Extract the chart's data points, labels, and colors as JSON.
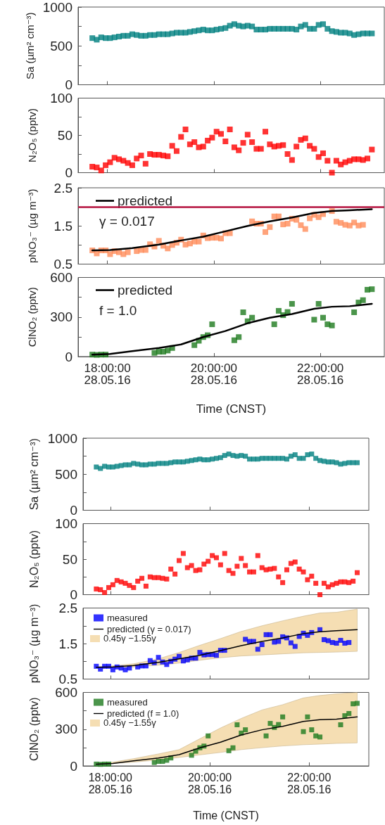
{
  "chart_data": [
    {
      "type": "scatter",
      "ylabel": "Sa (µm² cm⁻³)",
      "marker": "square",
      "tick_labels": "y",
      "xlim": [
        "--05-28T17:27",
        "--05-28T23:12"
      ],
      "xticks": [
        {
          "value": "--05-28T18:00",
          "label": null
        },
        {
          "value": "--05-28T20:00",
          "label": null
        },
        {
          "value": "--05-28T22:00",
          "label": null
        }
      ],
      "ylim": [
        0,
        1000
      ],
      "yticks": [
        0,
        {
          "value": 250,
          "label": null
        },
        500,
        {
          "value": 750,
          "label": null
        },
        1000
      ],
      "x": [
        "--05-28T17:43",
        "--05-28T17:48",
        "--05-28T17:53",
        "--05-28T17:58",
        "--05-28T18:03",
        "--05-28T18:08",
        "--05-28T18:13",
        "--05-28T18:18",
        "--05-28T18:23",
        "--05-28T18:28",
        "--05-28T18:33",
        "--05-28T18:38",
        "--05-28T18:43",
        "--05-28T18:48",
        "--05-28T18:53",
        "--05-28T18:58",
        "--05-28T19:03",
        "--05-28T19:08",
        "--05-28T19:13",
        "--05-28T19:18",
        "--05-28T19:23",
        "--05-28T19:28",
        "--05-28T19:33",
        "--05-28T19:38",
        "--05-28T19:43",
        "--05-28T19:48",
        "--05-28T19:53",
        "--05-28T19:58",
        "--05-28T20:03",
        "--05-28T20:08",
        "--05-28T20:13",
        "--05-28T20:18",
        "--05-28T20:23",
        "--05-28T20:28",
        "--05-28T20:33",
        "--05-28T20:38",
        "--05-28T20:43",
        "--05-28T20:48",
        "--05-28T20:53",
        "--05-28T20:58",
        "--05-28T21:03",
        "--05-28T21:08",
        "--05-28T21:13",
        "--05-28T21:18",
        "--05-28T21:23",
        "--05-28T21:28",
        "--05-28T21:33",
        "--05-28T21:38",
        "--05-28T21:43",
        "--05-28T21:48",
        "--05-28T21:53",
        "--05-28T21:58",
        "--05-28T22:03",
        "--05-28T22:08",
        "--05-28T22:13",
        "--05-28T22:18",
        "--05-28T22:23",
        "--05-28T22:28",
        "--05-28T22:33",
        "--05-28T22:38",
        "--05-28T22:43",
        "--05-28T22:48",
        "--05-28T22:53",
        "--05-28T22:58"
      ],
      "series": [
        {
          "color": "#008080",
          "values": [
            600,
            580,
            610,
            600,
            600,
            610,
            620,
            630,
            630,
            650,
            640,
            630,
            630,
            640,
            640,
            650,
            650,
            650,
            660,
            670,
            670,
            670,
            680,
            690,
            700,
            710,
            700,
            700,
            710,
            720,
            730,
            760,
            780,
            760,
            750,
            760,
            750,
            710,
            710,
            710,
            720,
            720,
            720,
            720,
            720,
            720,
            710,
            750,
            770,
            720,
            720,
            770,
            780,
            720,
            690,
            680,
            670,
            670,
            660,
            640,
            650,
            660,
            660,
            660
          ]
        }
      ]
    },
    {
      "type": "scatter",
      "ylabel": "N₂O₅ (pptv)",
      "marker": "square",
      "tick_labels": "y",
      "xlim": [
        "--05-28T17:27",
        "--05-28T23:12"
      ],
      "xticks": [
        {
          "value": "--05-28T18:00",
          "label": null
        },
        {
          "value": "--05-28T20:00",
          "label": null
        },
        {
          "value": "--05-28T22:00",
          "label": null
        }
      ],
      "ylim": [
        0,
        100
      ],
      "yticks": [
        0,
        {
          "value": 25,
          "label": null
        },
        50,
        {
          "value": 75,
          "label": null
        },
        100
      ],
      "x": [
        "--05-28T17:43",
        "--05-28T17:48",
        "--05-28T17:53",
        "--05-28T17:58",
        "--05-28T18:03",
        "--05-28T18:08",
        "--05-28T18:13",
        "--05-28T18:18",
        "--05-28T18:23",
        "--05-28T18:28",
        "--05-28T18:33",
        "--05-28T18:38",
        "--05-28T18:43",
        "--05-28T18:48",
        "--05-28T18:53",
        "--05-28T18:58",
        "--05-28T19:03",
        "--05-28T19:08",
        "--05-28T19:13",
        "--05-28T19:18",
        "--05-28T19:23",
        "--05-28T19:28",
        "--05-28T19:33",
        "--05-28T19:38",
        "--05-28T19:43",
        "--05-28T19:48",
        "--05-28T19:53",
        "--05-28T19:58",
        "--05-28T20:03",
        "--05-28T20:08",
        "--05-28T20:13",
        "--05-28T20:18",
        "--05-28T20:23",
        "--05-28T20:28",
        "--05-28T20:33",
        "--05-28T20:38",
        "--05-28T20:43",
        "--05-28T20:48",
        "--05-28T20:53",
        "--05-28T20:58",
        "--05-28T21:03",
        "--05-28T21:08",
        "--05-28T21:13",
        "--05-28T21:18",
        "--05-28T21:23",
        "--05-28T21:28",
        "--05-28T21:33",
        "--05-28T21:38",
        "--05-28T21:43",
        "--05-28T21:48",
        "--05-28T21:53",
        "--05-28T21:58",
        "--05-28T22:03",
        "--05-28T22:08",
        "--05-28T22:13",
        "--05-28T22:18",
        "--05-28T22:23",
        "--05-28T22:28",
        "--05-28T22:33",
        "--05-28T22:38",
        "--05-28T22:43",
        "--05-28T22:48",
        "--05-28T22:53",
        "--05-28T22:58"
      ],
      "series": [
        {
          "color": "#ff0000",
          "values": [
            8,
            7,
            3,
            10,
            14,
            20,
            18,
            16,
            13,
            10,
            19,
            23,
            12,
            25,
            24,
            24,
            23,
            22,
            36,
            29,
            48,
            58,
            38,
            41,
            34,
            35,
            43,
            47,
            55,
            52,
            42,
            58,
            34,
            30,
            40,
            51,
            41,
            32,
            32,
            55,
            38,
            35,
            36,
            37,
            25,
            17,
            35,
            44,
            46,
            36,
            32,
            21,
            26,
            16,
            0,
            16,
            11,
            14,
            16,
            18,
            18,
            17,
            19,
            31
          ]
        }
      ]
    },
    {
      "type": "scatter",
      "ylabel": "pNO₃⁻ (µg m⁻³)",
      "marker": "square",
      "legend": "top left",
      "annotations": [
        "γ = 0.017"
      ],
      "tick_labels": "y",
      "xlim": [
        "--05-28T17:27",
        "--05-28T23:12"
      ],
      "xticks": [
        {
          "value": "--05-28T18:00",
          "label": null
        },
        {
          "value": "--05-28T20:00",
          "label": null
        },
        {
          "value": "--05-28T22:00",
          "label": null
        }
      ],
      "ylim": [
        0.5,
        2.5
      ],
      "yticks": [
        0.5,
        {
          "value": 1.0,
          "label": null
        },
        1.5,
        {
          "value": 2.0,
          "label": null
        },
        2.5
      ],
      "ref_lines": [
        {
          "axis": "y",
          "value": 2.0,
          "color": "#b5123e"
        }
      ],
      "x": [
        "--05-28T17:43",
        "--05-28T17:48",
        "--05-28T17:53",
        "--05-28T17:58",
        "--05-28T18:03",
        "--05-28T18:08",
        "--05-28T18:13",
        "--05-28T18:18",
        "--05-28T18:23",
        "--05-28T18:28",
        "--05-28T18:33",
        "--05-28T18:38",
        "--05-28T18:43",
        "--05-28T18:48",
        "--05-28T18:53",
        "--05-28T18:58",
        "--05-28T19:03",
        "--05-28T19:08",
        "--05-28T19:13",
        "--05-28T19:18",
        "--05-28T19:23",
        "--05-28T19:28",
        "--05-28T19:33",
        "--05-28T19:38",
        "--05-28T19:43",
        "--05-28T19:48",
        "--05-28T19:53",
        "--05-28T19:58",
        "--05-28T20:03",
        "--05-28T20:08",
        "--05-28T20:13",
        "--05-28T20:18",
        "--05-28T20:23",
        "--05-28T20:28",
        "--05-28T20:33",
        "--05-28T20:38",
        "--05-28T20:43",
        "--05-28T20:48",
        "--05-28T20:53",
        "--05-28T20:58",
        "--05-28T21:03",
        "--05-28T21:08",
        "--05-28T21:13",
        "--05-28T21:18",
        "--05-28T21:23",
        "--05-28T21:28",
        "--05-28T21:33",
        "--05-28T21:38",
        "--05-28T21:43",
        "--05-28T21:48",
        "--05-28T21:53",
        "--05-28T21:58",
        "--05-28T22:03",
        "--05-28T22:08",
        "--05-28T22:13",
        "--05-28T22:18",
        "--05-28T22:23",
        "--05-28T22:28",
        "--05-28T22:33",
        "--05-28T22:38",
        "--05-28T22:43",
        "--05-28T22:48"
      ],
      "series": [
        {
          "color": "#ff8c5a",
          "values": [
            0.86,
            0.78,
            0.86,
            0.86,
            0.76,
            0.84,
            0.81,
            0.76,
            0.81,
            null,
            0.84,
            0.87,
            0.87,
            1.02,
            0.96,
            1.11,
            0.98,
            0.91,
            1.0,
            1.06,
            1.14,
            1.01,
            1.04,
            1.09,
            1.09,
            1.25,
            1.18,
            1.19,
            1.19,
            1.17,
            1.31,
            1.31,
            null,
            null,
            null,
            null,
            1.62,
            1.56,
            1.56,
            1.34,
            1.47,
            1.75,
            1.75,
            1.54,
            1.56,
            1.69,
            1.66,
            1.52,
            1.42,
            1.7,
            1.79,
            1.73,
            1.81,
            null,
            1.89,
            1.61,
            1.58,
            1.53,
            1.51,
            1.59,
            1.51,
            1.53
          ]
        },
        {
          "type": "line",
          "name": "predicted",
          "color": "#000000",
          "marker": "none",
          "x": [
            "--05-28T17:43",
            "--05-28T18:03",
            "--05-28T18:28",
            "--05-28T18:58",
            "--05-28T19:23",
            "--05-28T19:48",
            "--05-28T20:13",
            "--05-28T20:38",
            "--05-28T21:03",
            "--05-28T21:28",
            "--05-28T21:53",
            "--05-28T22:13",
            "--05-28T22:33",
            "--05-28T22:58"
          ],
          "values": [
            0.86,
            0.87,
            0.92,
            1.01,
            1.12,
            1.22,
            1.36,
            1.5,
            1.62,
            1.72,
            1.84,
            1.89,
            1.91,
            1.94
          ]
        }
      ]
    },
    {
      "type": "scatter",
      "ylabel": "ClNO₂ (pptv)",
      "xlabel": "Time (CNST)",
      "marker": "square",
      "legend": "top left",
      "annotations": [
        "f = 1.0"
      ],
      "xlim": [
        "--05-28T17:27",
        "--05-28T23:12"
      ],
      "xticks": [
        {
          "value": "--05-28T18:00",
          "label": "18:00:00\n28.05.16"
        },
        {
          "value": "--05-28T20:00",
          "label": "20:00:00\n28.05.16"
        },
        {
          "value": "--05-28T22:00",
          "label": "22:00:00\n28.05.16"
        }
      ],
      "ylim": [
        0,
        600
      ],
      "yticks": [
        0,
        {
          "value": 150,
          "label": null
        },
        300,
        {
          "value": 450,
          "label": null
        },
        600
      ],
      "x": [
        "--05-28T17:43",
        "--05-28T17:48",
        "--05-28T17:53",
        "--05-28T17:58",
        "--05-28T18:03",
        "--05-28T18:08",
        "--05-28T18:13",
        "--05-28T18:18",
        "--05-28T18:23",
        "--05-28T18:28",
        "--05-28T18:33",
        "--05-28T18:38",
        "--05-28T18:43",
        "--05-28T18:48",
        "--05-28T18:53",
        "--05-28T18:58",
        "--05-28T19:03",
        "--05-28T19:08",
        "--05-28T19:13",
        "--05-28T19:18",
        "--05-28T19:23",
        "--05-28T19:28",
        "--05-28T19:33",
        "--05-28T19:38",
        "--05-28T19:43",
        "--05-28T19:48",
        "--05-28T19:53",
        "--05-28T19:58",
        "--05-28T20:03",
        "--05-28T20:08",
        "--05-28T20:13",
        "--05-28T20:18",
        "--05-28T20:23",
        "--05-28T20:28",
        "--05-28T20:33",
        "--05-28T20:38",
        "--05-28T20:43",
        "--05-28T20:48",
        "--05-28T20:53",
        "--05-28T20:58",
        "--05-28T21:03",
        "--05-28T21:08",
        "--05-28T21:13",
        "--05-28T21:18",
        "--05-28T21:23",
        "--05-28T21:28",
        "--05-28T21:33",
        "--05-28T21:38",
        "--05-28T21:43",
        "--05-28T21:48",
        "--05-28T21:53",
        "--05-28T21:58",
        "--05-28T22:03",
        "--05-28T22:08",
        "--05-28T22:13",
        "--05-28T22:18",
        "--05-28T22:23",
        "--05-28T22:28",
        "--05-28T22:33",
        "--05-28T22:38",
        "--05-28T22:43",
        "--05-28T22:48",
        "--05-28T22:53",
        "--05-28T22:58"
      ],
      "series": [
        {
          "color": "#1e7a1e",
          "values": [
            15,
            13,
            15,
            15,
            null,
            null,
            null,
            null,
            null,
            null,
            null,
            null,
            null,
            null,
            28,
            37,
            37,
            46,
            65,
            null,
            null,
            null,
            null,
            87,
            120,
            148,
            162,
            245,
            null,
            null,
            null,
            null,
            124,
            148,
            336,
            268,
            295,
            null,
            null,
            null,
            null,
            245,
            347,
            314,
            338,
            400,
            null,
            null,
            null,
            null,
            280,
            400,
            295,
            245,
            236,
            null,
            null,
            null,
            null,
            336,
            410,
            428,
            507,
            511
          ]
        },
        {
          "type": "line",
          "name": "predicted",
          "color": "#000000",
          "marker": "none",
          "x": [
            "--05-28T17:43",
            "--05-28T18:03",
            "--05-28T18:28",
            "--05-28T18:58",
            "--05-28T19:23",
            "--05-28T19:48",
            "--05-28T20:13",
            "--05-28T20:38",
            "--05-28T21:03",
            "--05-28T21:28",
            "--05-28T21:53",
            "--05-28T22:13",
            "--05-28T22:33",
            "--05-28T22:58"
          ],
          "values": [
            15,
            20,
            41,
            65,
            92,
            148,
            194,
            253,
            295,
            323,
            363,
            378,
            382,
            400
          ]
        }
      ]
    },
    {
      "type": "scatter",
      "ylabel": "Sa (µm² cm⁻³)",
      "marker": "square",
      "tick_labels": "y",
      "xlim": [
        "--05-28T17:27",
        "--05-28T23:12"
      ],
      "xticks": [
        {
          "value": "--05-28T18:00",
          "label": null
        },
        {
          "value": "--05-28T20:00",
          "label": null
        },
        {
          "value": "--05-28T22:00",
          "label": null
        }
      ],
      "ylim": [
        0,
        1000
      ],
      "yticks": [
        0,
        {
          "value": 250,
          "label": null
        },
        500,
        {
          "value": 750,
          "label": null
        },
        1000
      ],
      "x": [
        "--05-28T17:43",
        "--05-28T17:48",
        "--05-28T17:53",
        "--05-28T17:58",
        "--05-28T18:03",
        "--05-28T18:08",
        "--05-28T18:13",
        "--05-28T18:18",
        "--05-28T18:23",
        "--05-28T18:28",
        "--05-28T18:33",
        "--05-28T18:38",
        "--05-28T18:43",
        "--05-28T18:48",
        "--05-28T18:53",
        "--05-28T18:58",
        "--05-28T19:03",
        "--05-28T19:08",
        "--05-28T19:13",
        "--05-28T19:18",
        "--05-28T19:23",
        "--05-28T19:28",
        "--05-28T19:33",
        "--05-28T19:38",
        "--05-28T19:43",
        "--05-28T19:48",
        "--05-28T19:53",
        "--05-28T19:58",
        "--05-28T20:03",
        "--05-28T20:08",
        "--05-28T20:13",
        "--05-28T20:18",
        "--05-28T20:23",
        "--05-28T20:28",
        "--05-28T20:33",
        "--05-28T20:38",
        "--05-28T20:43",
        "--05-28T20:48",
        "--05-28T20:53",
        "--05-28T20:58",
        "--05-28T21:03",
        "--05-28T21:08",
        "--05-28T21:13",
        "--05-28T21:18",
        "--05-28T21:23",
        "--05-28T21:28",
        "--05-28T21:33",
        "--05-28T21:38",
        "--05-28T21:43",
        "--05-28T21:48",
        "--05-28T21:53",
        "--05-28T21:58",
        "--05-28T22:03",
        "--05-28T22:08",
        "--05-28T22:13",
        "--05-28T22:18",
        "--05-28T22:23",
        "--05-28T22:28",
        "--05-28T22:33",
        "--05-28T22:38",
        "--05-28T22:43",
        "--05-28T22:48",
        "--05-28T22:53",
        "--05-28T22:58"
      ],
      "series": [
        {
          "color": "#008080",
          "values": [
            600,
            580,
            610,
            600,
            600,
            610,
            620,
            630,
            630,
            650,
            640,
            630,
            630,
            640,
            640,
            650,
            650,
            650,
            660,
            670,
            670,
            670,
            680,
            690,
            700,
            710,
            700,
            700,
            710,
            720,
            730,
            760,
            780,
            760,
            750,
            760,
            750,
            710,
            710,
            710,
            720,
            720,
            720,
            720,
            720,
            720,
            710,
            750,
            770,
            720,
            720,
            770,
            780,
            720,
            690,
            680,
            670,
            670,
            660,
            640,
            650,
            660,
            660,
            660
          ]
        }
      ]
    },
    {
      "type": "scatter",
      "ylabel": "N₂O₅ (pptv)",
      "marker": "square",
      "tick_labels": "y",
      "xlim": [
        "--05-28T17:27",
        "--05-28T23:12"
      ],
      "xticks": [
        {
          "value": "--05-28T18:00",
          "label": null
        },
        {
          "value": "--05-28T20:00",
          "label": null
        },
        {
          "value": "--05-28T22:00",
          "label": null
        }
      ],
      "ylim": [
        0,
        100
      ],
      "yticks": [
        0,
        {
          "value": 25,
          "label": null
        },
        50,
        {
          "value": 75,
          "label": null
        },
        100
      ],
      "x": [
        "--05-28T17:43",
        "--05-28T17:48",
        "--05-28T17:53",
        "--05-28T17:58",
        "--05-28T18:03",
        "--05-28T18:08",
        "--05-28T18:13",
        "--05-28T18:18",
        "--05-28T18:23",
        "--05-28T18:28",
        "--05-28T18:33",
        "--05-28T18:38",
        "--05-28T18:43",
        "--05-28T18:48",
        "--05-28T18:53",
        "--05-28T18:58",
        "--05-28T19:03",
        "--05-28T19:08",
        "--05-28T19:13",
        "--05-28T19:18",
        "--05-28T19:23",
        "--05-28T19:28",
        "--05-28T19:33",
        "--05-28T19:38",
        "--05-28T19:43",
        "--05-28T19:48",
        "--05-28T19:53",
        "--05-28T19:58",
        "--05-28T20:03",
        "--05-28T20:08",
        "--05-28T20:13",
        "--05-28T20:18",
        "--05-28T20:23",
        "--05-28T20:28",
        "--05-28T20:33",
        "--05-28T20:38",
        "--05-28T20:43",
        "--05-28T20:48",
        "--05-28T20:53",
        "--05-28T20:58",
        "--05-28T21:03",
        "--05-28T21:08",
        "--05-28T21:13",
        "--05-28T21:18",
        "--05-28T21:23",
        "--05-28T21:28",
        "--05-28T21:33",
        "--05-28T21:38",
        "--05-28T21:43",
        "--05-28T21:48",
        "--05-28T21:53",
        "--05-28T21:58",
        "--05-28T22:03",
        "--05-28T22:08",
        "--05-28T22:13",
        "--05-28T22:18",
        "--05-28T22:23",
        "--05-28T22:28",
        "--05-28T22:33",
        "--05-28T22:38",
        "--05-28T22:43",
        "--05-28T22:48",
        "--05-28T22:53",
        "--05-28T22:58"
      ],
      "series": [
        {
          "color": "#ff0000",
          "values": [
            8,
            7,
            3,
            10,
            14,
            20,
            18,
            16,
            13,
            10,
            19,
            23,
            12,
            25,
            24,
            24,
            23,
            22,
            36,
            29,
            48,
            58,
            38,
            41,
            34,
            35,
            43,
            47,
            55,
            52,
            42,
            58,
            34,
            30,
            40,
            51,
            41,
            32,
            32,
            55,
            38,
            35,
            36,
            37,
            25,
            17,
            35,
            44,
            46,
            36,
            32,
            21,
            26,
            16,
            0,
            16,
            11,
            14,
            16,
            18,
            18,
            17,
            19,
            31
          ]
        }
      ]
    },
    {
      "type": "scatter",
      "ylabel": "pNO₃⁻ (µg m⁻³)",
      "marker": "square",
      "legend": "top left",
      "annotations": [
        "0.45γ −1.55γ"
      ],
      "tick_labels": "y",
      "xlim": [
        "--05-28T17:27",
        "--05-28T23:12"
      ],
      "xticks": [
        {
          "value": "--05-28T18:00",
          "label": null
        },
        {
          "value": "--05-28T20:00",
          "label": null
        },
        {
          "value": "--05-28T22:00",
          "label": null
        }
      ],
      "ylim": [
        0.5,
        2.5
      ],
      "yticks": [
        0.5,
        {
          "value": 1.0,
          "label": null
        },
        1.5,
        {
          "value": 2.0,
          "label": null
        },
        2.5
      ],
      "x": [
        "--05-28T17:43",
        "--05-28T17:48",
        "--05-28T17:53",
        "--05-28T17:58",
        "--05-28T18:03",
        "--05-28T18:08",
        "--05-28T18:13",
        "--05-28T18:18",
        "--05-28T18:23",
        "--05-28T18:28",
        "--05-28T18:33",
        "--05-28T18:38",
        "--05-28T18:43",
        "--05-28T18:48",
        "--05-28T18:53",
        "--05-28T18:58",
        "--05-28T19:03",
        "--05-28T19:08",
        "--05-28T19:13",
        "--05-28T19:18",
        "--05-28T19:23",
        "--05-28T19:28",
        "--05-28T19:33",
        "--05-28T19:38",
        "--05-28T19:43",
        "--05-28T19:48",
        "--05-28T19:53",
        "--05-28T19:58",
        "--05-28T20:03",
        "--05-28T20:08",
        "--05-28T20:13",
        "--05-28T20:18",
        "--05-28T20:23",
        "--05-28T20:28",
        "--05-28T20:33",
        "--05-28T20:38",
        "--05-28T20:43",
        "--05-28T20:48",
        "--05-28T20:53",
        "--05-28T20:58",
        "--05-28T21:03",
        "--05-28T21:08",
        "--05-28T21:13",
        "--05-28T21:18",
        "--05-28T21:23",
        "--05-28T21:28",
        "--05-28T21:33",
        "--05-28T21:38",
        "--05-28T21:43",
        "--05-28T21:48",
        "--05-28T21:53",
        "--05-28T21:58",
        "--05-28T22:03",
        "--05-28T22:08",
        "--05-28T22:13",
        "--05-28T22:18",
        "--05-28T22:23",
        "--05-28T22:28",
        "--05-28T22:33",
        "--05-28T22:38",
        "--05-28T22:43",
        "--05-28T22:48"
      ],
      "series": [
        {
          "name": "measured",
          "color": "#0000ff",
          "values": [
            0.86,
            0.78,
            0.86,
            0.86,
            0.76,
            0.84,
            0.81,
            0.76,
            0.81,
            null,
            0.84,
            0.87,
            0.87,
            1.02,
            0.96,
            1.11,
            0.98,
            0.91,
            1.0,
            1.06,
            1.14,
            1.01,
            1.04,
            1.09,
            1.09,
            1.25,
            1.18,
            1.19,
            1.19,
            1.17,
            1.31,
            1.31,
            null,
            null,
            null,
            null,
            1.62,
            1.56,
            1.56,
            1.34,
            1.47,
            1.75,
            1.75,
            1.54,
            1.56,
            1.69,
            1.66,
            1.52,
            1.42,
            1.7,
            1.79,
            1.73,
            1.81,
            null,
            1.89,
            1.61,
            1.58,
            1.53,
            1.51,
            1.59,
            1.51,
            1.53
          ]
        },
        {
          "type": "line",
          "name": "predicted (γ = 0.017)",
          "color": "#000000",
          "marker": "none",
          "x": [
            "--05-28T17:43",
            "--05-28T18:03",
            "--05-28T18:28",
            "--05-28T18:58",
            "--05-28T19:23",
            "--05-28T19:48",
            "--05-28T20:13",
            "--05-28T20:38",
            "--05-28T21:03",
            "--05-28T21:28",
            "--05-28T21:53",
            "--05-28T22:13",
            "--05-28T22:33",
            "--05-28T22:58"
          ],
          "values": [
            0.83,
            0.84,
            0.88,
            0.97,
            1.07,
            1.17,
            1.3,
            1.44,
            1.56,
            1.66,
            1.78,
            1.83,
            1.86,
            1.89
          ],
          "lower": [
            0.82,
            0.82,
            0.84,
            0.89,
            0.95,
            1.03,
            1.1,
            1.15,
            1.18,
            1.21,
            1.24,
            1.25,
            1.26,
            1.28
          ],
          "upper": [
            0.84,
            0.87,
            0.93,
            1.07,
            1.25,
            1.45,
            1.64,
            1.84,
            2.0,
            2.14,
            2.27,
            2.36,
            2.38,
            2.47
          ]
        }
      ]
    },
    {
      "type": "scatter",
      "ylabel": "ClNO₂ (pptv)",
      "xlabel": "Time (CNST)",
      "marker": "square",
      "legend": "top left",
      "annotations": [
        "0.45γ −1.55γ"
      ],
      "xlim": [
        "--05-28T17:27",
        "--05-28T23:12"
      ],
      "xticks": [
        {
          "value": "--05-28T18:00",
          "label": "18:00:00\n28.05.16"
        },
        {
          "value": "--05-28T20:00",
          "label": "20:00:00\n28.05.16"
        },
        {
          "value": "--05-28T22:00",
          "label": "22:00:00\n28.05.16"
        }
      ],
      "ylim": [
        0,
        600
      ],
      "yticks": [
        0,
        {
          "value": 150,
          "label": null
        },
        300,
        {
          "value": 450,
          "label": null
        },
        600
      ],
      "x": [
        "--05-28T17:43",
        "--05-28T17:48",
        "--05-28T17:53",
        "--05-28T17:58",
        "--05-28T18:03",
        "--05-28T18:08",
        "--05-28T18:13",
        "--05-28T18:18",
        "--05-28T18:23",
        "--05-28T18:28",
        "--05-28T18:33",
        "--05-28T18:38",
        "--05-28T18:43",
        "--05-28T18:48",
        "--05-28T18:53",
        "--05-28T18:58",
        "--05-28T19:03",
        "--05-28T19:08",
        "--05-28T19:13",
        "--05-28T19:18",
        "--05-28T19:23",
        "--05-28T19:28",
        "--05-28T19:33",
        "--05-28T19:38",
        "--05-28T19:43",
        "--05-28T19:48",
        "--05-28T19:53",
        "--05-28T19:58",
        "--05-28T20:03",
        "--05-28T20:08",
        "--05-28T20:13",
        "--05-28T20:18",
        "--05-28T20:23",
        "--05-28T20:28",
        "--05-28T20:33",
        "--05-28T20:38",
        "--05-28T20:43",
        "--05-28T20:48",
        "--05-28T20:53",
        "--05-28T20:58",
        "--05-28T21:03",
        "--05-28T21:08",
        "--05-28T21:13",
        "--05-28T21:18",
        "--05-28T21:23",
        "--05-28T21:28",
        "--05-28T21:33",
        "--05-28T21:38",
        "--05-28T21:43",
        "--05-28T21:48",
        "--05-28T21:53",
        "--05-28T21:58",
        "--05-28T22:03",
        "--05-28T22:08",
        "--05-28T22:13",
        "--05-28T22:18",
        "--05-28T22:23",
        "--05-28T22:28",
        "--05-28T22:33",
        "--05-28T22:38",
        "--05-28T22:43",
        "--05-28T22:48",
        "--05-28T22:53",
        "--05-28T22:58"
      ],
      "series": [
        {
          "name": "measured",
          "color": "#1e7a1e",
          "values": [
            15,
            13,
            15,
            15,
            null,
            null,
            null,
            null,
            null,
            null,
            null,
            null,
            null,
            null,
            28,
            37,
            37,
            46,
            65,
            null,
            null,
            null,
            null,
            87,
            120,
            148,
            162,
            245,
            null,
            null,
            null,
            null,
            124,
            148,
            336,
            268,
            295,
            null,
            null,
            null,
            null,
            245,
            347,
            314,
            338,
            400,
            null,
            null,
            null,
            null,
            280,
            400,
            295,
            245,
            236,
            null,
            null,
            null,
            null,
            336,
            410,
            428,
            507,
            511
          ]
        },
        {
          "type": "line",
          "name": "predicted (f = 1.0)",
          "color": "#000000",
          "marker": "none",
          "x": [
            "--05-28T17:43",
            "--05-28T18:03",
            "--05-28T18:28",
            "--05-28T18:58",
            "--05-28T19:23",
            "--05-28T19:48",
            "--05-28T20:13",
            "--05-28T20:38",
            "--05-28T21:03",
            "--05-28T21:28",
            "--05-28T21:53",
            "--05-28T22:13",
            "--05-28T22:33",
            "--05-28T22:58"
          ],
          "values": [
            15,
            20,
            41,
            65,
            92,
            148,
            194,
            253,
            295,
            323,
            363,
            378,
            382,
            400
          ],
          "lower": [
            12,
            20,
            31,
            49,
            69,
            90,
            110,
            133,
            149,
            163,
            173,
            178,
            184,
            188
          ],
          "upper": [
            16,
            31,
            59,
            98,
            133,
            222,
            310,
            388,
            457,
            500,
            555,
            575,
            588,
            600
          ]
        }
      ]
    }
  ]
}
